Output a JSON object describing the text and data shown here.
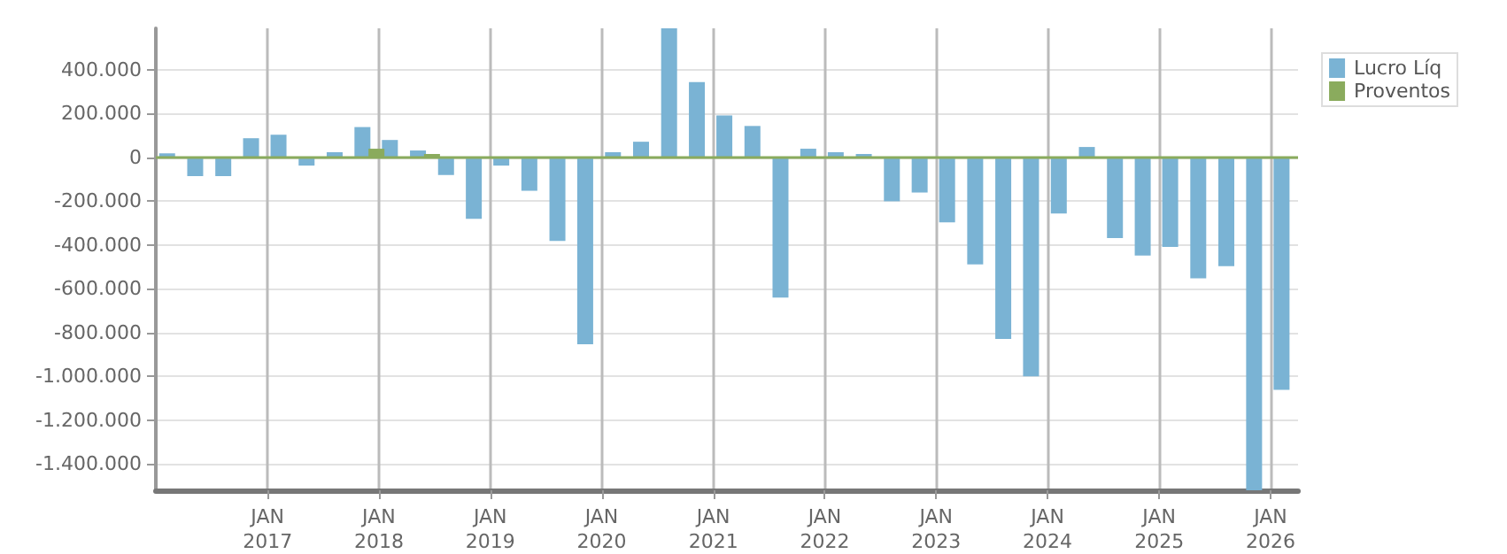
{
  "chart_data": {
    "type": "bar",
    "x": [
      "2016-03",
      "2016-06",
      "2016-09",
      "2016-12",
      "2017-03",
      "2017-06",
      "2017-09",
      "2017-12",
      "2018-03",
      "2018-06",
      "2018-09",
      "2018-12",
      "2019-03",
      "2019-06",
      "2019-09",
      "2019-12",
      "2020-03",
      "2020-06",
      "2020-09",
      "2020-12",
      "2021-03",
      "2021-06",
      "2021-09",
      "2021-12",
      "2022-03",
      "2022-06",
      "2022-09",
      "2022-12",
      "2023-03",
      "2023-06",
      "2023-09",
      "2023-12",
      "2024-03",
      "2024-06",
      "2024-09",
      "2024-12",
      "2025-03",
      "2025-06",
      "2025-09",
      "2025-12",
      "2026-03"
    ],
    "series": [
      {
        "name": "Lucro Líq",
        "color": "#7ab3d4",
        "values": [
          19000,
          -85000,
          -85000,
          88000,
          104000,
          -37000,
          24000,
          139000,
          80000,
          32000,
          -80000,
          -280000,
          -37000,
          -152000,
          -381000,
          -853000,
          24000,
          72000,
          590000,
          344000,
          192000,
          144000,
          -640000,
          40000,
          24000,
          16000,
          -200000,
          -160000,
          -296000,
          -488000,
          -829000,
          -1000000,
          -256000,
          48000,
          -368000,
          -448000,
          -408000,
          -552000,
          -496000,
          -1520000,
          -1061000
        ]
      },
      {
        "name": "Proventos",
        "color": "#8aab5d",
        "values": [
          0,
          0,
          0,
          0,
          0,
          0,
          0,
          40000,
          0,
          16000,
          0,
          0,
          0,
          0,
          0,
          0,
          0,
          0,
          0,
          0,
          0,
          0,
          0,
          0,
          0,
          0,
          0,
          0,
          0,
          0,
          0,
          0,
          0,
          0,
          0,
          0,
          0,
          0,
          0,
          0,
          0
        ]
      }
    ],
    "xlim": [
      "2016-01",
      "2026-04"
    ],
    "xticks": [
      {
        "value": "2017-01",
        "label": "JAN 2017"
      },
      {
        "value": "2018-01",
        "label": "JAN 2018"
      },
      {
        "value": "2019-01",
        "label": "JAN 2019"
      },
      {
        "value": "2020-01",
        "label": "JAN 2020"
      },
      {
        "value": "2021-01",
        "label": "JAN 2021"
      },
      {
        "value": "2022-01",
        "label": "JAN 2022"
      },
      {
        "value": "2023-01",
        "label": "JAN 2023"
      },
      {
        "value": "2024-01",
        "label": "JAN 2024"
      },
      {
        "value": "2025-01",
        "label": "JAN 2025"
      },
      {
        "value": "2026-01",
        "label": "JAN 2026"
      }
    ],
    "ylim": [
      -1520000,
      590000
    ],
    "yticks": [
      {
        "value": -1400000,
        "label": "-1.400.000"
      },
      {
        "value": -1200000,
        "label": "-1.200.000"
      },
      {
        "value": -1000000,
        "label": "-1.000.000"
      },
      {
        "value": -800000,
        "label": "-800.000"
      },
      {
        "value": -600000,
        "label": "-600.000"
      },
      {
        "value": -400000,
        "label": "-400.000"
      },
      {
        "value": -200000,
        "label": "-200.000"
      },
      {
        "value": 0,
        "label": "0"
      },
      {
        "value": 200000,
        "label": "200.000"
      },
      {
        "value": 400000,
        "label": "400.000"
      }
    ],
    "ref_lines": [
      {
        "axis": "y",
        "value": 0,
        "color": "#8aab5d"
      }
    ],
    "grid": true,
    "legend": "top right"
  }
}
